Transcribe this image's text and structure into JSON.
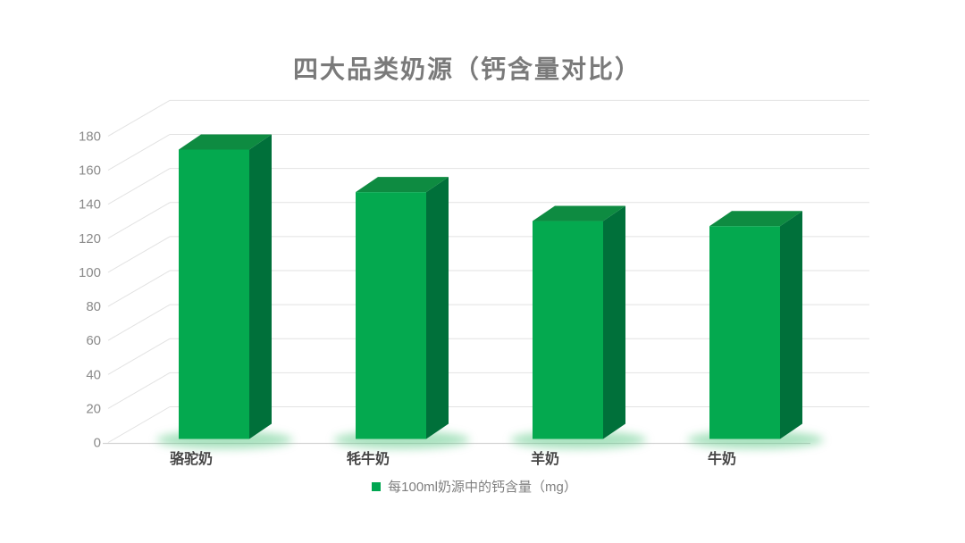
{
  "title": "四大品类奶源（钙含量对比）",
  "chart_data": {
    "type": "bar",
    "variant": "3d-column",
    "title": "四大品类奶源（钙含量对比）",
    "categories": [
      "骆驼奶",
      "牦牛奶",
      "羊奶",
      "牛奶"
    ],
    "series": [
      {
        "name": "每100ml奶源中的钙含量（mg）",
        "values": [
          170,
          145,
          128,
          125
        ]
      }
    ],
    "xlabel": "",
    "ylabel": "",
    "ylim": [
      0,
      180
    ],
    "ytick_step": 20,
    "ytick_labels": [
      "0",
      "20",
      "40",
      "60",
      "80",
      "100",
      "120",
      "140",
      "160",
      "180"
    ],
    "grid": true,
    "legend_position": "bottom"
  },
  "legend": {
    "label": "每100ml奶源中的钙含量（mg）",
    "marker_color": "#00a651"
  },
  "colors": {
    "background": "#ffffff",
    "bar_front": "#04a94f",
    "bar_top": "#0e8b41",
    "bar_side": "#00703a",
    "bar_glow": "#62ca8a",
    "gridline": "#e2e2e2",
    "axis_line": "#d5d5d5",
    "title_text": "#7a7a7a",
    "tick_text": "#8a8a8a",
    "category_text": "#454545",
    "legend_text": "#7f7f7f"
  }
}
